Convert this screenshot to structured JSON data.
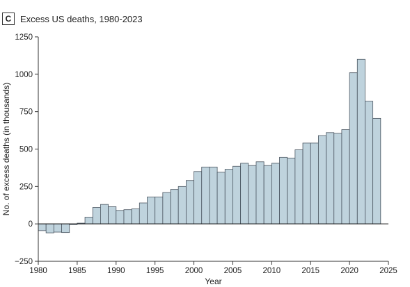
{
  "panel": {
    "badge": "C",
    "title": "Excess US deaths, 1980-2023"
  },
  "colors": {
    "bar_fill": "#bfd3dd",
    "bar_stroke": "#4a5560",
    "axis": "#333333",
    "zero_line": "#111111"
  },
  "chart_data": {
    "type": "bar",
    "title": "Excess US deaths, 1980-2023",
    "xlabel": "Year",
    "ylabel": "No. of excess deaths (in thousands)",
    "xlim": [
      1980,
      2025
    ],
    "ylim": [
      -250,
      1250
    ],
    "xticks": [
      1980,
      1985,
      1990,
      1995,
      2000,
      2005,
      2010,
      2015,
      2020,
      2025
    ],
    "yticks": [
      -250,
      0,
      250,
      500,
      750,
      1000,
      1250
    ],
    "grid": false,
    "categories": [
      1980,
      1981,
      1982,
      1983,
      1984,
      1985,
      1986,
      1987,
      1988,
      1989,
      1990,
      1991,
      1992,
      1993,
      1994,
      1995,
      1996,
      1997,
      1998,
      1999,
      2000,
      2001,
      2002,
      2003,
      2004,
      2005,
      2006,
      2007,
      2008,
      2009,
      2010,
      2011,
      2012,
      2013,
      2014,
      2015,
      2016,
      2017,
      2018,
      2019,
      2020,
      2021,
      2022,
      2023
    ],
    "values": [
      -45,
      -60,
      -55,
      -58,
      -5,
      5,
      45,
      110,
      130,
      115,
      90,
      95,
      100,
      140,
      180,
      180,
      210,
      230,
      250,
      290,
      350,
      380,
      380,
      345,
      365,
      385,
      405,
      390,
      415,
      390,
      405,
      445,
      440,
      495,
      540,
      540,
      590,
      610,
      605,
      630,
      1010,
      1100,
      820,
      705
    ]
  }
}
